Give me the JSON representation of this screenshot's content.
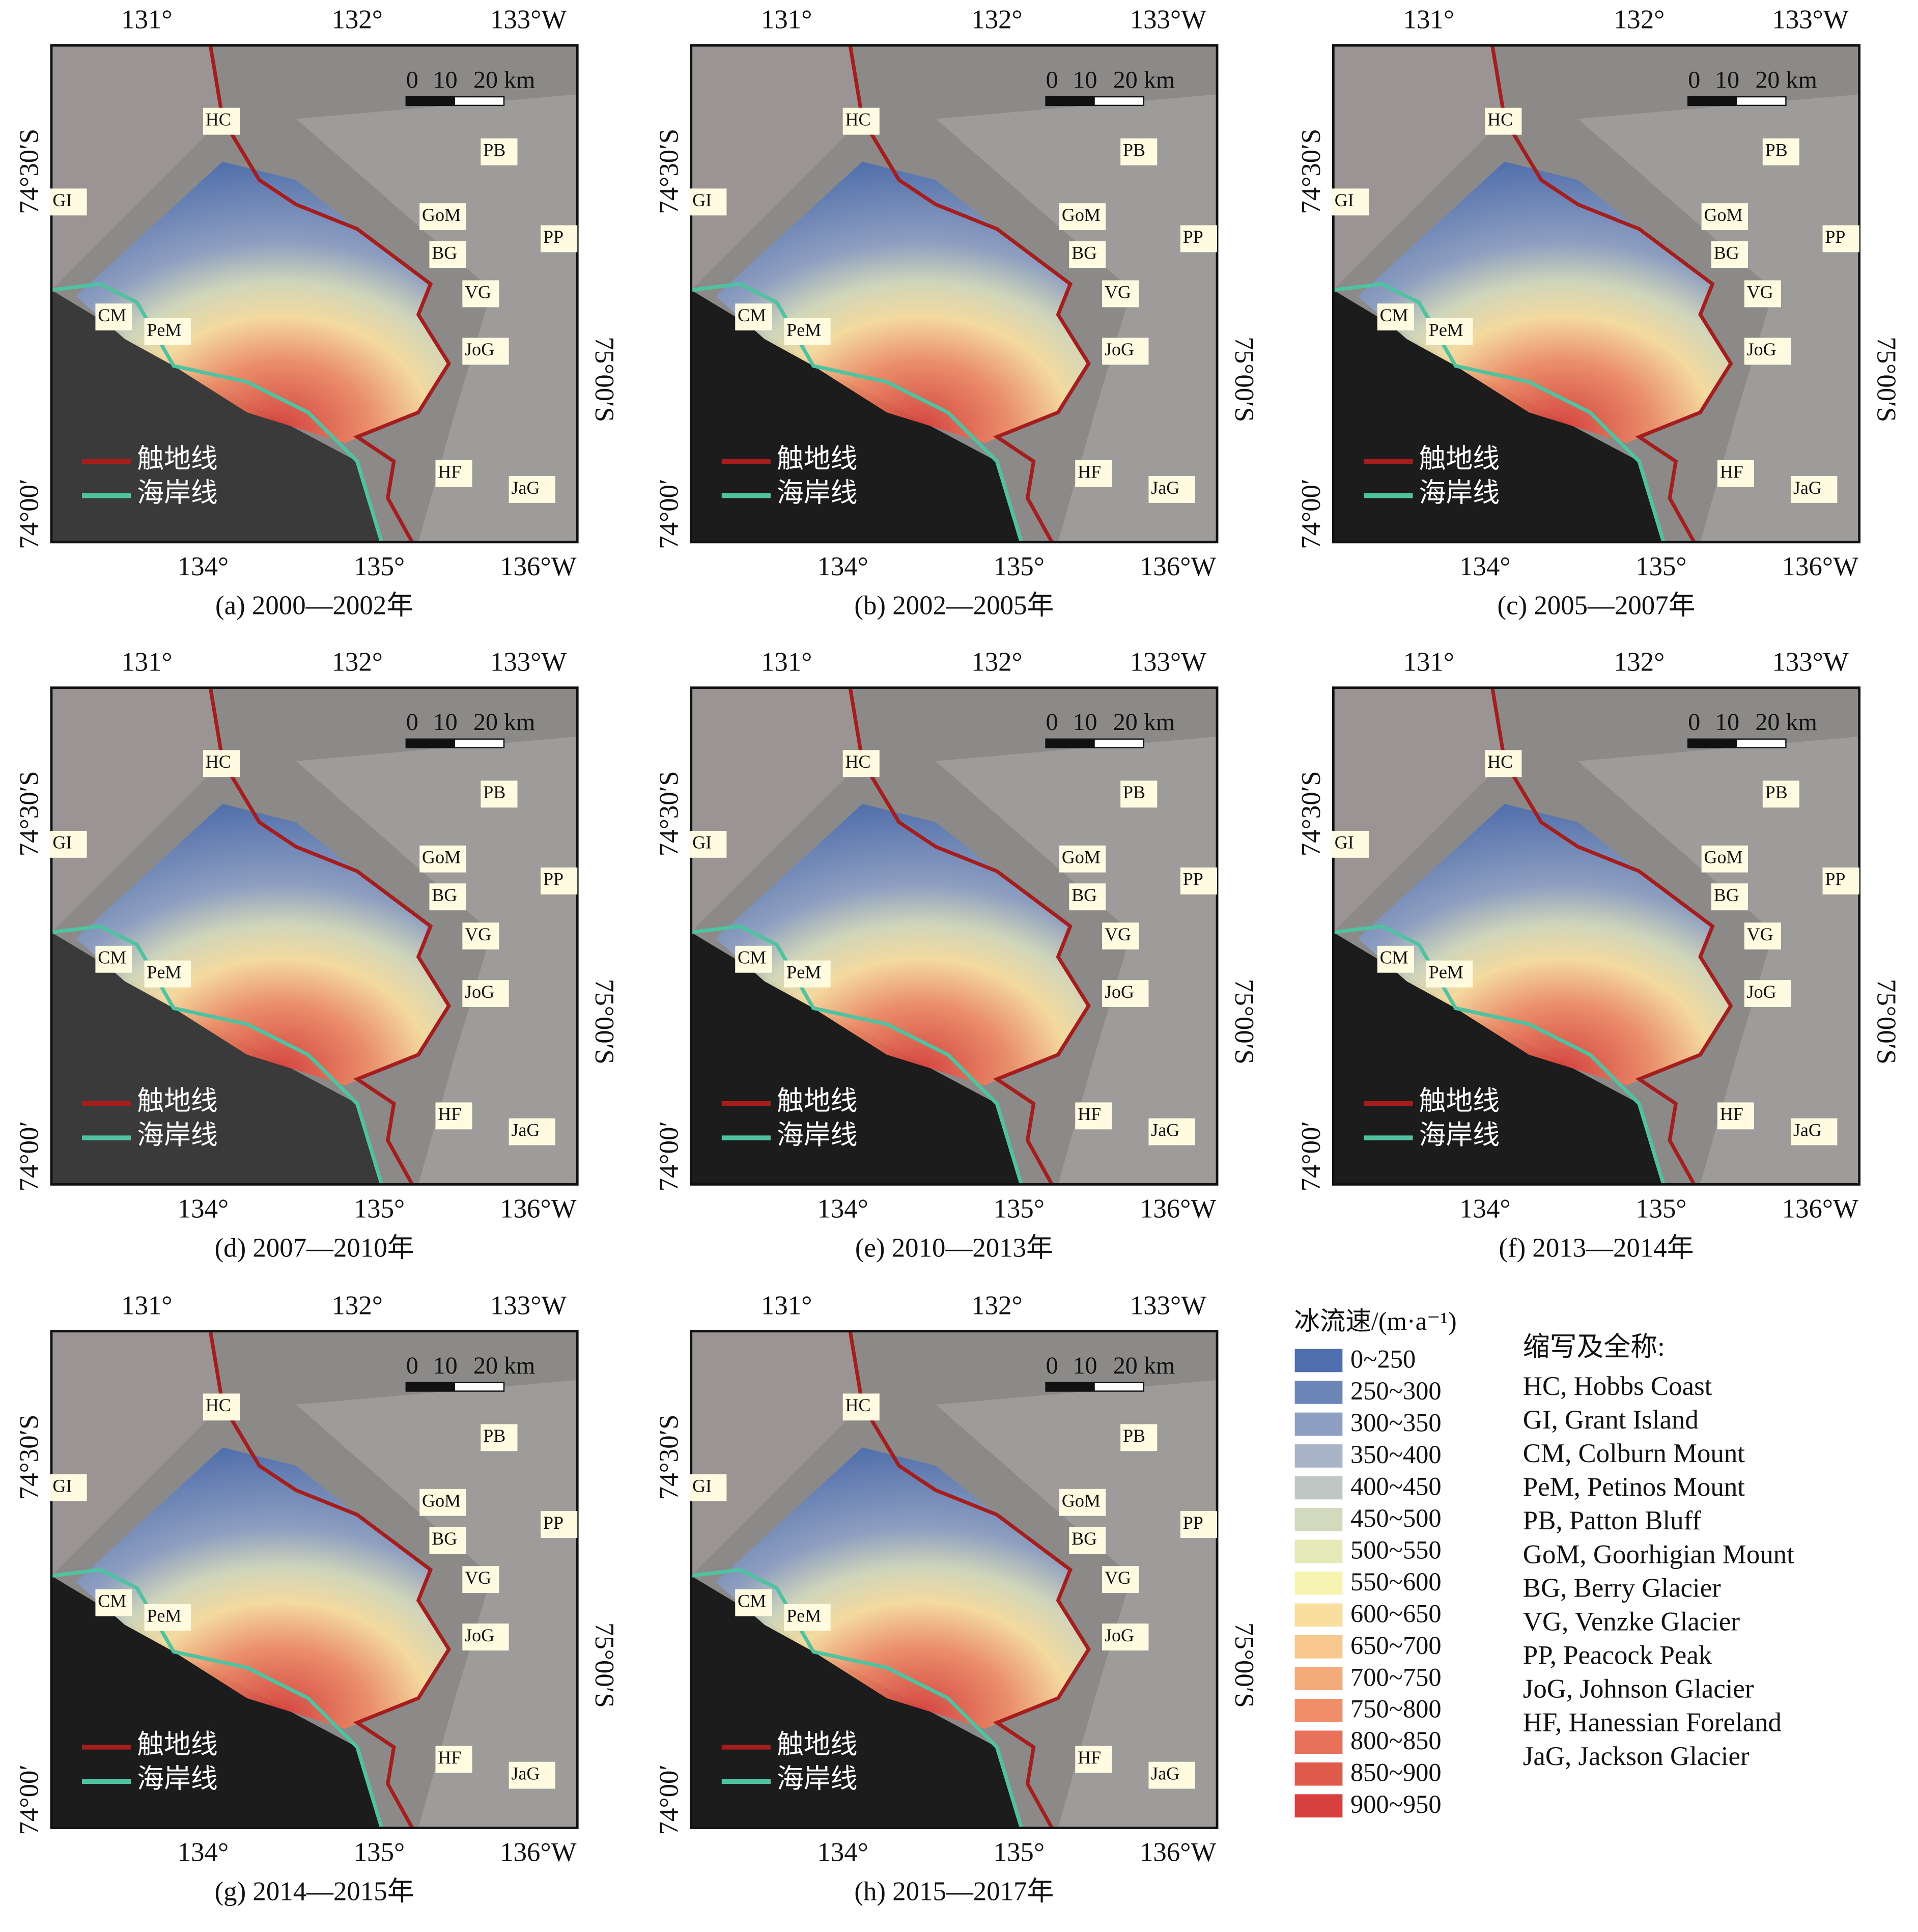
{
  "map": {
    "top_ticks": [
      "131°",
      "132°",
      "133°W"
    ],
    "bottom_ticks": [
      "134°",
      "135°",
      "136°W"
    ],
    "left_ticks": [
      "74°30′S",
      "74°00′"
    ],
    "right_tick": "75°00′S",
    "scale_bar": [
      "0",
      "10",
      "20 km"
    ],
    "line_legend": [
      "触地线",
      "海岸线"
    ],
    "place_labels": [
      "HC",
      "GI",
      "GoM",
      "PB",
      "PP",
      "BG",
      "VG",
      "CM",
      "PeM",
      "JoG",
      "HF",
      "JaG"
    ]
  },
  "panels": [
    {
      "caption": "(a) 2000—2002年"
    },
    {
      "caption": "(b) 2002—2005年"
    },
    {
      "caption": "(c) 2005—2007年"
    },
    {
      "caption": "(d) 2007—2010年"
    },
    {
      "caption": "(e) 2010—2013年"
    },
    {
      "caption": "(f) 2013—2014年"
    },
    {
      "caption": "(g) 2014—2015年"
    },
    {
      "caption": "(h) 2015—2017年"
    }
  ],
  "velocity_legend": {
    "title": "冰流速/(m·a⁻¹)",
    "classes": [
      {
        "label": "0~250",
        "color": "#4f6fae"
      },
      {
        "label": "250~300",
        "color": "#6d86b8"
      },
      {
        "label": "300~350",
        "color": "#8d9fc3"
      },
      {
        "label": "350~400",
        "color": "#a9b4c8"
      },
      {
        "label": "400~450",
        "color": "#bfc6c3"
      },
      {
        "label": "450~500",
        "color": "#d3d9bd"
      },
      {
        "label": "500~550",
        "color": "#e6eab6"
      },
      {
        "label": "550~600",
        "color": "#f7f3b0"
      },
      {
        "label": "600~650",
        "color": "#f9dea0"
      },
      {
        "label": "650~700",
        "color": "#f8c78d"
      },
      {
        "label": "700~750",
        "color": "#f4aa7a"
      },
      {
        "label": "750~800",
        "color": "#ef8e68"
      },
      {
        "label": "800~850",
        "color": "#e8715a"
      },
      {
        "label": "850~900",
        "color": "#e05a4c"
      },
      {
        "label": "900~950",
        "color": "#d7403d"
      }
    ]
  },
  "abbreviations": {
    "title": "缩写及全称:",
    "entries": [
      "HC, Hobbs Coast",
      "GI, Grant Island",
      "CM, Colburn Mount",
      "PeM, Petinos Mount",
      "PB, Patton Bluff",
      "GoM, Goorhigian Mount",
      "BG, Berry Glacier",
      "VG, Venzke Glacier",
      "PP, Peacock Peak",
      "JoG, Johnson Glacier",
      "HF, Hanessian Foreland",
      "JaG, Jackson Glacier"
    ]
  }
}
